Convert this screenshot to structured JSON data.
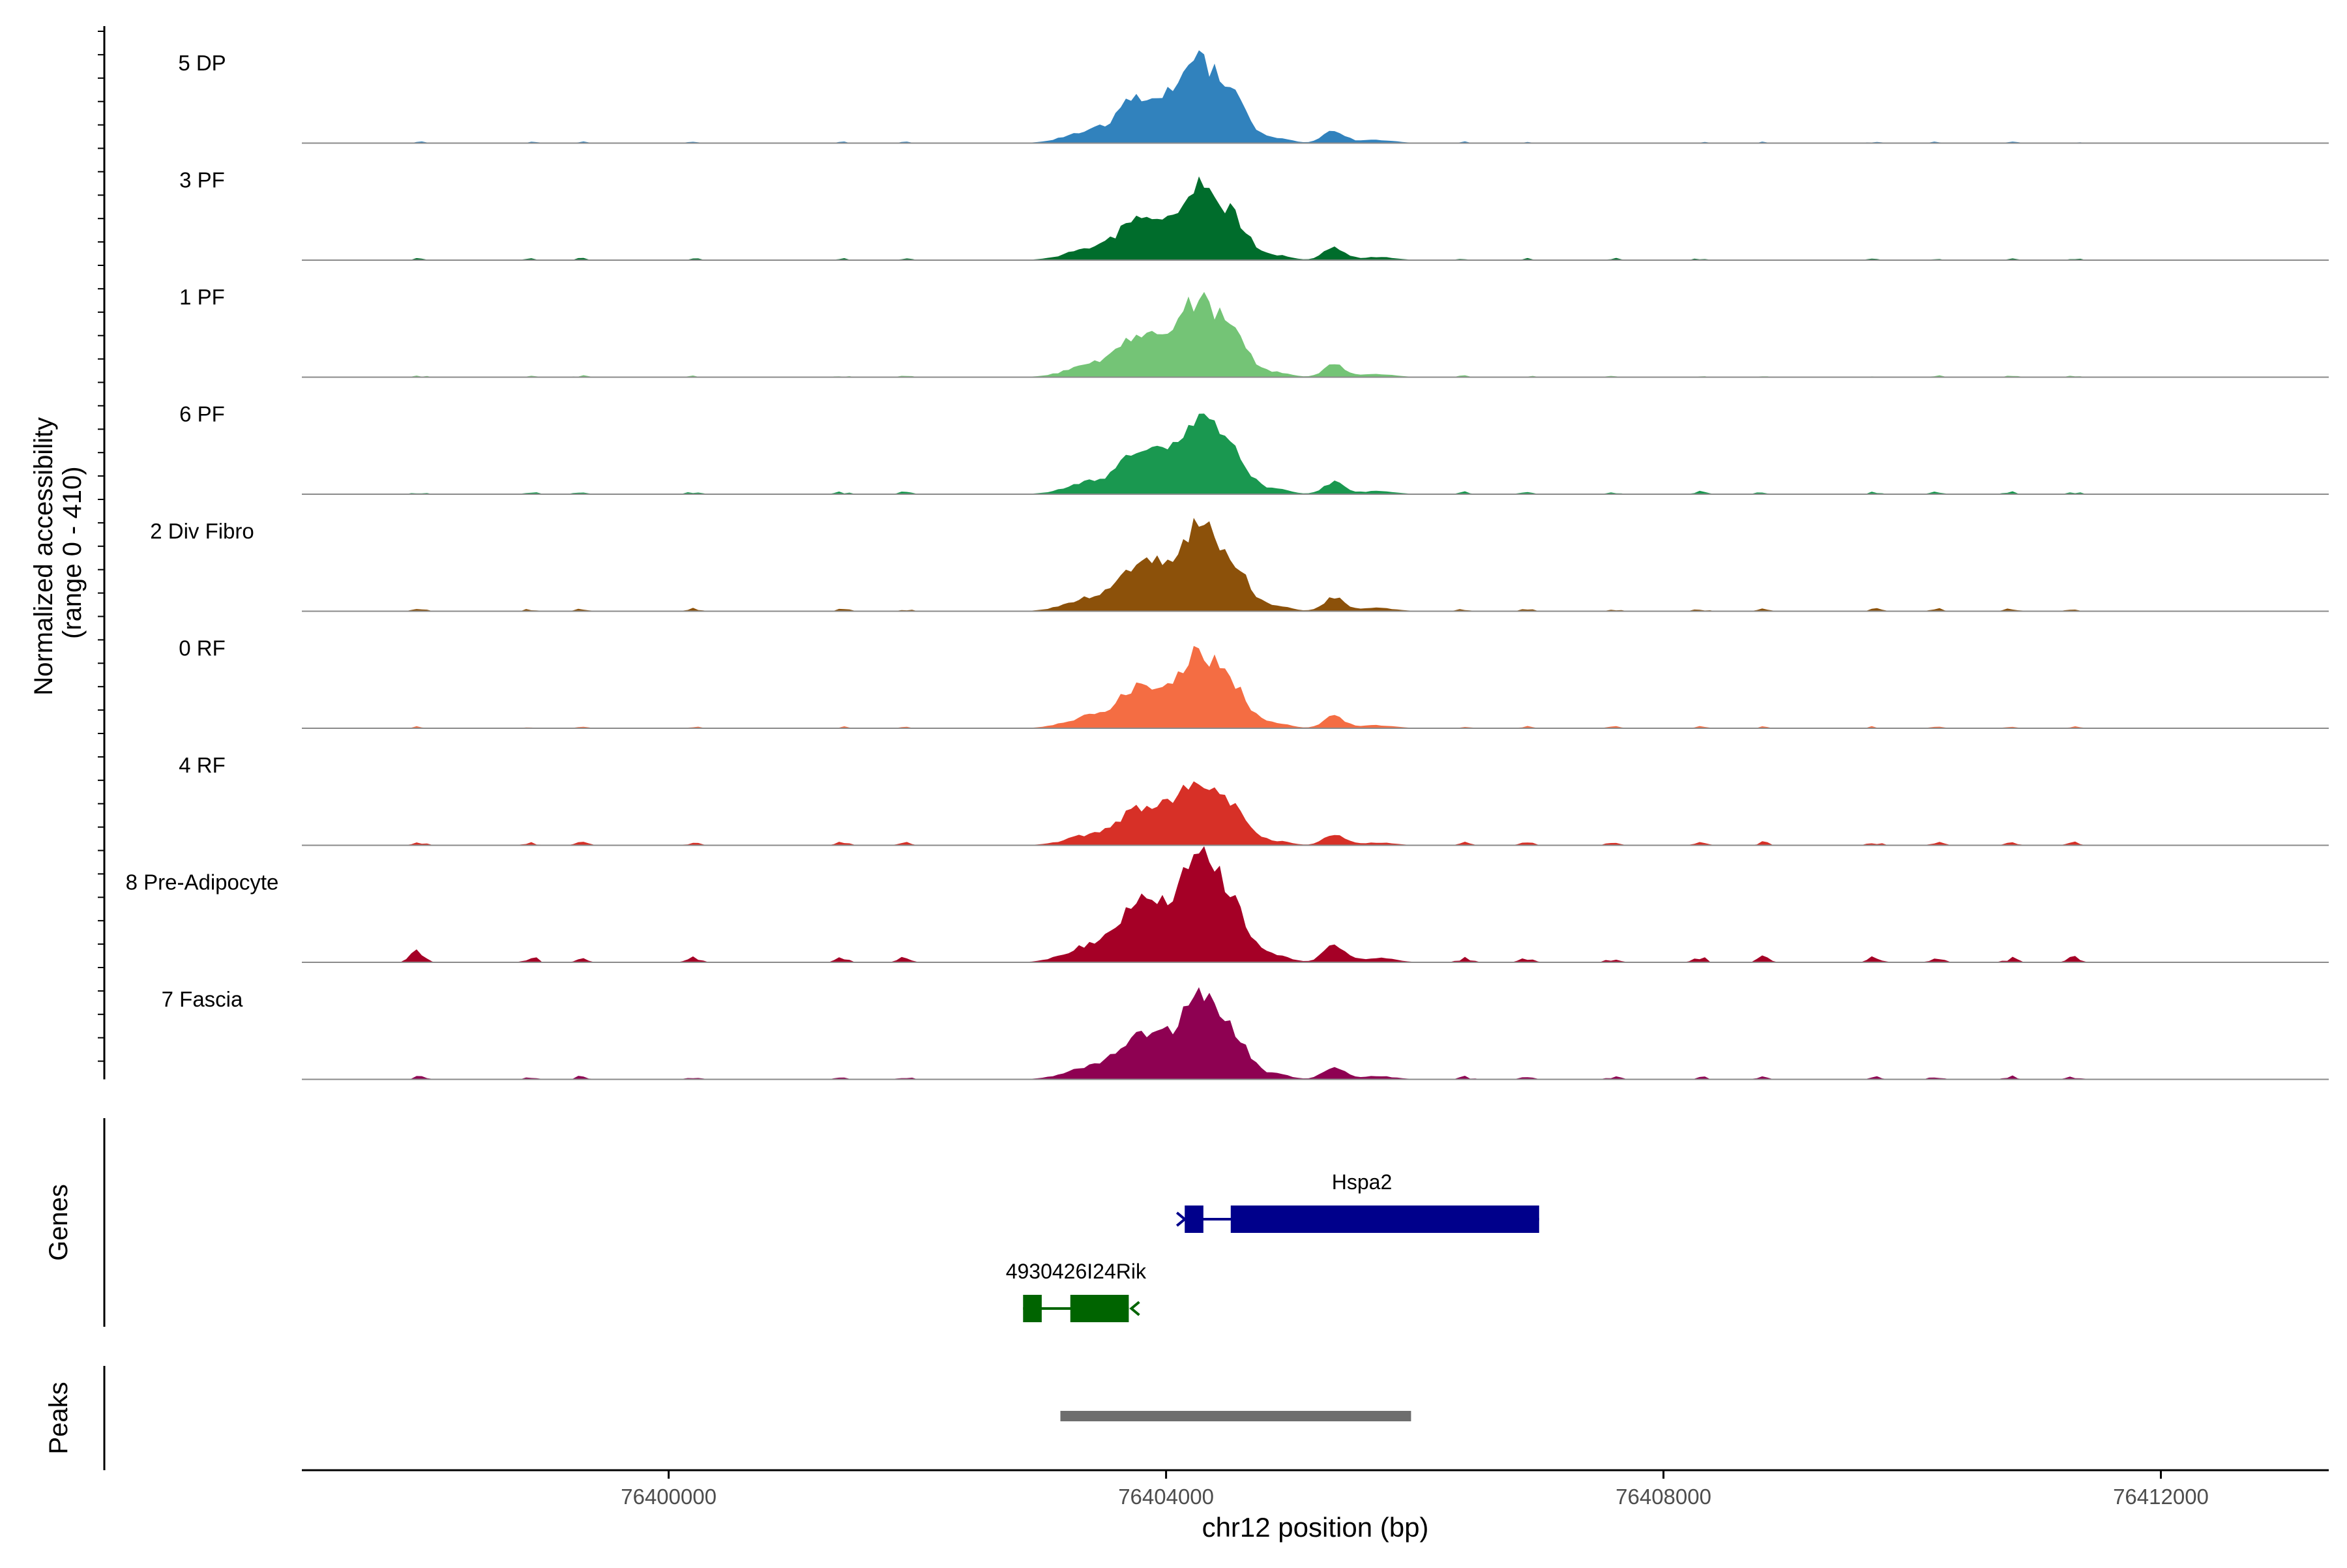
{
  "chart_data": {
    "type": "area",
    "title": "",
    "xlabel": "chr12 position (bp)",
    "ylabel_line1": "Normalized accessibility",
    "ylabel_line2": "(range 0 - 410)",
    "xlim": [
      76397050,
      76413350
    ],
    "x_ticks": [
      76400000,
      76404000,
      76408000,
      76412000
    ],
    "x_tick_labels": [
      "76400000",
      "76404000",
      "76408000",
      "76412000"
    ],
    "y_range": [
      0,
      410
    ],
    "grid": false,
    "tracks": [
      {
        "name": "5 DP",
        "color": "#3182bd",
        "peak_scale": 0.75,
        "bg": 0.025
      },
      {
        "name": "3 PF",
        "color": "#006d2c",
        "peak_scale": 0.7,
        "bg": 0.035
      },
      {
        "name": "1 PF",
        "color": "#74c476",
        "peak_scale": 0.72,
        "bg": 0.03
      },
      {
        "name": "6 PF",
        "color": "#1a9850",
        "peak_scale": 0.7,
        "bg": 0.05
      },
      {
        "name": "2 Div Fibro",
        "color": "#8c510a",
        "peak_scale": 0.78,
        "bg": 0.05
      },
      {
        "name": "0 RF",
        "color": "#f46d43",
        "peak_scale": 0.7,
        "bg": 0.035
      },
      {
        "name": "4 RF",
        "color": "#d73027",
        "peak_scale": 0.61,
        "bg": 0.06
      },
      {
        "name": "8 Pre-Adipocyte",
        "color": "#a50026",
        "peak_scale": 1.0,
        "bg": 0.1
      },
      {
        "name": "7 Fascia",
        "color": "#8e0152",
        "peak_scale": 0.75,
        "bg": 0.06
      }
    ],
    "genes_label": "Genes",
    "genes": [
      {
        "name": "Hspa2",
        "strand": "+",
        "color": "#00008b",
        "start": 76404150,
        "end": 76407000,
        "exons": [
          [
            76404150,
            76404300
          ],
          [
            76404520,
            76407000
          ]
        ]
      },
      {
        "name": "4930426I24Rik",
        "strand": "-",
        "color": "#006400",
        "start": 76402850,
        "end": 76403700,
        "exons": [
          [
            76402850,
            76403000
          ],
          [
            76403230,
            76403700
          ]
        ]
      }
    ],
    "peaks_label": "Peaks",
    "peaks": [
      [
        76403150,
        76405970
      ]
    ]
  }
}
